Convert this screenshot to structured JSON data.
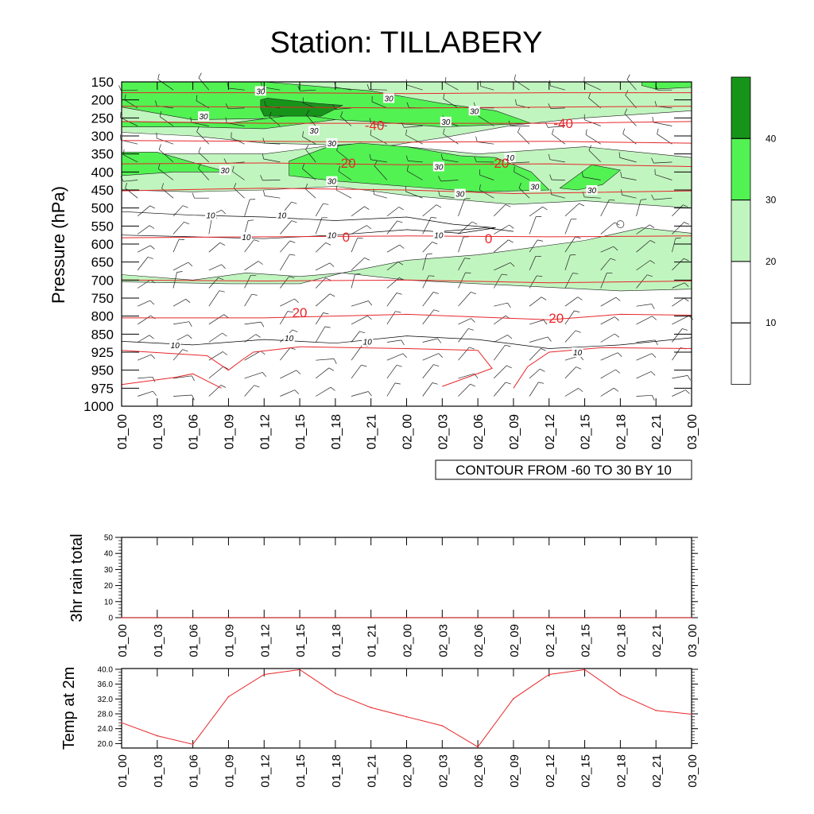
{
  "title": "Station: TILLABERY",
  "colors": {
    "axis": "#000000",
    "temp_contour": "#e8262a",
    "speed_contour": "#000000",
    "fill_20_30": "#c1f5bf",
    "fill_30_40": "#52f253",
    "fill_40_up": "#16941a"
  },
  "time_labels": [
    "01_00",
    "01_03",
    "01_06",
    "01_09",
    "01_12",
    "01_15",
    "01_18",
    "01_21",
    "02_00",
    "02_03",
    "02_06",
    "02_09",
    "02_12",
    "02_15",
    "02_18",
    "02_21",
    "03_00"
  ],
  "chart_data": [
    {
      "type": "heatmap",
      "name": "time-pressure cross section",
      "ylabel": "Pressure (hPa)",
      "y_ticks": [
        "150",
        "200",
        "250",
        "300",
        "350",
        "400",
        "450",
        "500",
        "550",
        "600",
        "650",
        "700",
        "750",
        "800",
        "850",
        "925",
        "950",
        "975",
        "1000"
      ],
      "colorbar": {
        "levels": [
          10,
          20,
          30,
          40
        ],
        "labels": [
          "10",
          "20",
          "30",
          "40"
        ]
      },
      "contour_info": "CONTOUR FROM -60 TO 30 BY 10",
      "temperature_contour_labels": [
        {
          "text": "-40",
          "time": 7.1,
          "p_index": 2.4
        },
        {
          "text": "-40",
          "time": 12.4,
          "p_index": 2.3
        },
        {
          "text": "-20",
          "time": 6.3,
          "p_index": 4.5
        },
        {
          "text": "-20",
          "time": 10.6,
          "p_index": 4.5
        },
        {
          "text": "0",
          "time": 6.3,
          "p_index": 8.6
        },
        {
          "text": "0",
          "time": 10.3,
          "p_index": 8.7
        },
        {
          "text": "20",
          "time": 5.0,
          "p_index": 12.8
        },
        {
          "text": "20",
          "time": 12.2,
          "p_index": 13.1
        }
      ],
      "speed_contour_labels": [
        {
          "text": "30",
          "time": 3.9,
          "p_index": 0.5
        },
        {
          "text": "30",
          "time": 7.5,
          "p_index": 0.9
        },
        {
          "text": "30",
          "time": 2.3,
          "p_index": 1.9
        },
        {
          "text": "30",
          "time": 5.4,
          "p_index": 2.7
        },
        {
          "text": "30",
          "time": 9.1,
          "p_index": 2.2
        },
        {
          "text": "30",
          "time": 9.9,
          "p_index": 1.6
        },
        {
          "text": "30",
          "time": 5.9,
          "p_index": 3.4
        },
        {
          "text": "30",
          "time": 2.9,
          "p_index": 4.9
        },
        {
          "text": "30",
          "time": 5.9,
          "p_index": 5.5
        },
        {
          "text": "30",
          "time": 8.9,
          "p_index": 4.7
        },
        {
          "text": "30",
          "time": 9.5,
          "p_index": 6.2
        },
        {
          "text": "30",
          "time": 11.6,
          "p_index": 5.8
        },
        {
          "text": "30",
          "time": 13.2,
          "p_index": 6.0
        },
        {
          "text": "10",
          "time": 10.9,
          "p_index": 4.2
        },
        {
          "text": "10",
          "time": 2.5,
          "p_index": 7.4
        },
        {
          "text": "10",
          "time": 4.5,
          "p_index": 7.4
        },
        {
          "text": "10",
          "time": 3.5,
          "p_index": 8.6
        },
        {
          "text": "10",
          "time": 5.9,
          "p_index": 8.5
        },
        {
          "text": "10",
          "time": 8.9,
          "p_index": 8.5
        },
        {
          "text": "10",
          "time": 1.5,
          "p_index": 14.6
        },
        {
          "text": "10",
          "time": 4.7,
          "p_index": 14.2
        },
        {
          "text": "10",
          "time": 6.9,
          "p_index": 14.4
        },
        {
          "text": "10",
          "time": 12.8,
          "p_index": 15.0
        }
      ]
    },
    {
      "type": "line",
      "ylabel": "3hr rain total",
      "ylim": [
        0,
        50
      ],
      "y_ticks": [
        "0",
        "10",
        "20",
        "30",
        "40",
        "50"
      ],
      "values": [
        0,
        0,
        0,
        0,
        0,
        0,
        0,
        0,
        0,
        0,
        0,
        0,
        0,
        0,
        0,
        0,
        0
      ]
    },
    {
      "type": "line",
      "ylabel": "Temp at 2m",
      "ylim": [
        18.8,
        40.2
      ],
      "y_ticks": [
        "20.0",
        "24.0",
        "28.0",
        "32.0",
        "36.0",
        "40.0"
      ],
      "values": [
        25.6,
        22.1,
        19.8,
        32.6,
        38.6,
        39.9,
        33.5,
        29.7,
        27.2,
        24.8,
        19.1,
        32.1,
        38.6,
        39.9,
        33.2,
        28.9,
        27.9
      ]
    }
  ]
}
